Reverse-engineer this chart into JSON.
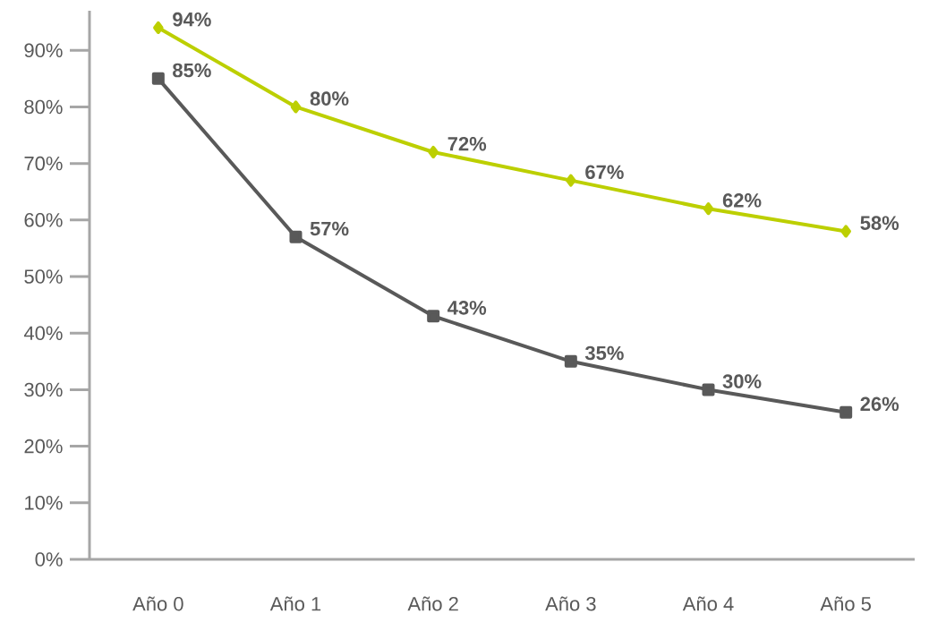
{
  "chart_data": {
    "type": "line",
    "categories": [
      "Año 0",
      "Año 1",
      "Año 2",
      "Año 3",
      "Año 4",
      "Año 5"
    ],
    "series": [
      {
        "color": "#bccf00",
        "marker": "diamond",
        "values": [
          94,
          80,
          72,
          67,
          62,
          58
        ],
        "value_labels": [
          "94%",
          "80%",
          "72%",
          "67%",
          "62%",
          "58%"
        ]
      },
      {
        "color": "#595959",
        "marker": "square",
        "values": [
          85,
          57,
          43,
          35,
          30,
          26
        ],
        "value_labels": [
          "85%",
          "57%",
          "43%",
          "35%",
          "30%",
          "26%"
        ]
      }
    ],
    "ylim": [
      0,
      97
    ],
    "yticks": [
      {
        "value": 0,
        "label": "0%"
      },
      {
        "value": 10,
        "label": "10%"
      },
      {
        "value": 20,
        "label": "20%"
      },
      {
        "value": 30,
        "label": "30%"
      },
      {
        "value": 40,
        "label": "40%"
      },
      {
        "value": 50,
        "label": "50%"
      },
      {
        "value": 60,
        "label": "60%"
      },
      {
        "value": 70,
        "label": "70%"
      },
      {
        "value": 80,
        "label": "80%"
      },
      {
        "value": 90,
        "label": "90%"
      }
    ],
    "grid": false,
    "line_style": "solid"
  }
}
